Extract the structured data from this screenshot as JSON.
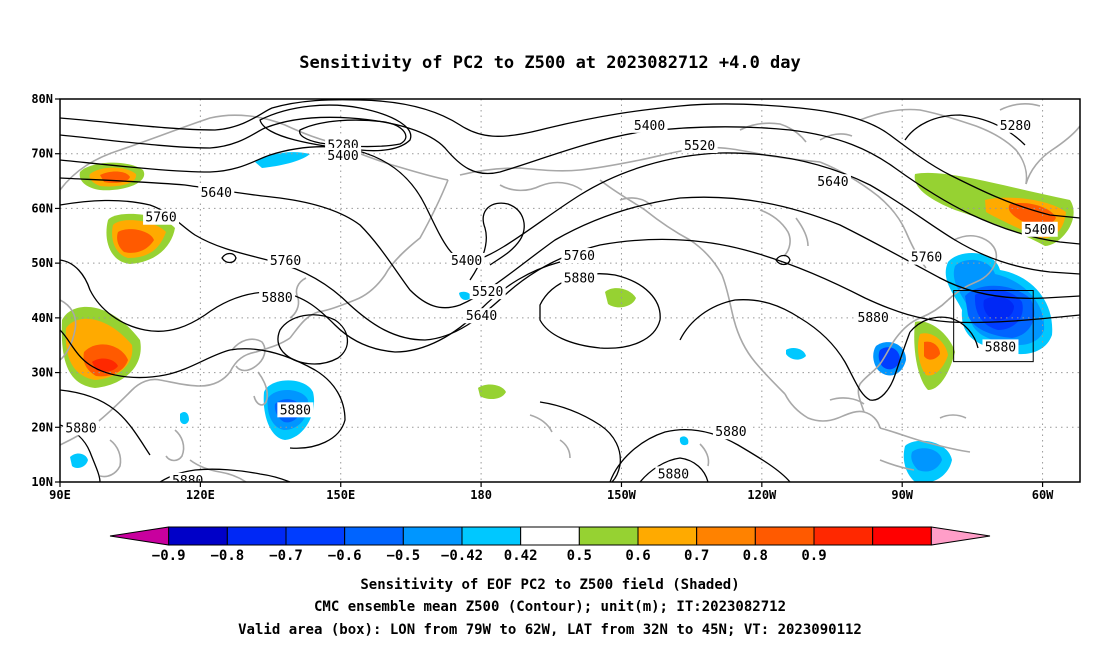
{
  "title": "Sensitivity of PC2 to Z500 at 2023082712 +4.0 day",
  "map": {
    "lon_min": 90,
    "lon_max": 308,
    "lat_min": 10,
    "lat_max": 80,
    "lat_ticks": [
      {
        "value": 80,
        "label": "80N"
      },
      {
        "value": 70,
        "label": "70N"
      },
      {
        "value": 60,
        "label": "60N"
      },
      {
        "value": 50,
        "label": "50N"
      },
      {
        "value": 40,
        "label": "40N"
      },
      {
        "value": 30,
        "label": "30N"
      },
      {
        "value": 20,
        "label": "20N"
      },
      {
        "value": 10,
        "label": "10N"
      }
    ],
    "lon_ticks": [
      {
        "value": 90,
        "label": "90E"
      },
      {
        "value": 120,
        "label": "120E"
      },
      {
        "value": 150,
        "label": "150E"
      },
      {
        "value": 180,
        "label": "180"
      },
      {
        "value": 210,
        "label": "150W"
      },
      {
        "value": 240,
        "label": "120W"
      },
      {
        "value": 270,
        "label": "90W"
      },
      {
        "value": 300,
        "label": "60W"
      }
    ],
    "grid": "dotted",
    "valid_box": {
      "lon_min": 281,
      "lon_max": 298,
      "lat_min": 32,
      "lat_max": 45
    }
  },
  "contour_labels": [
    {
      "text": "5280",
      "lon": 150.5,
      "lat": 71.5
    },
    {
      "text": "5400",
      "lon": 150.5,
      "lat": 69.6
    },
    {
      "text": "5640",
      "lon": 123.4,
      "lat": 62.8
    },
    {
      "text": "5760",
      "lon": 111.6,
      "lat": 58.3
    },
    {
      "text": "5760",
      "lon": 138.2,
      "lat": 50.4
    },
    {
      "text": "5880",
      "lon": 136.4,
      "lat": 43.6
    },
    {
      "text": "5400",
      "lon": 176.9,
      "lat": 50.4
    },
    {
      "text": "5520",
      "lon": 181.4,
      "lat": 44.7
    },
    {
      "text": "5640",
      "lon": 180.1,
      "lat": 40.3
    },
    {
      "text": "5760",
      "lon": 201.0,
      "lat": 51.3
    },
    {
      "text": "5880",
      "lon": 201.0,
      "lat": 47.2
    },
    {
      "text": "5400",
      "lon": 216.0,
      "lat": 75.1
    },
    {
      "text": "5520",
      "lon": 226.7,
      "lat": 71.4
    },
    {
      "text": "5640",
      "lon": 255.2,
      "lat": 64.8
    },
    {
      "text": "5760",
      "lon": 275.2,
      "lat": 51.0
    },
    {
      "text": "5280",
      "lon": 294.2,
      "lat": 75.1
    },
    {
      "text": "5400",
      "lon": 299.4,
      "lat": 56.1
    },
    {
      "text": "5880",
      "lon": 263.8,
      "lat": 40.0
    },
    {
      "text": "5880",
      "lon": 291.0,
      "lat": 34.6
    },
    {
      "text": "5880",
      "lon": 140.3,
      "lat": 23.1
    },
    {
      "text": "5880",
      "lon": 94.5,
      "lat": 19.8
    },
    {
      "text": "5880",
      "lon": 233.4,
      "lat": 19.1
    },
    {
      "text": "5880",
      "lon": 221.1,
      "lat": 11.4
    },
    {
      "text": "5880",
      "lon": 117.3,
      "lat": 10.2
    }
  ],
  "colorbar": {
    "colors": [
      "#c8009e",
      "#0000c8",
      "#0028f5",
      "#003dff",
      "#0064ff",
      "#0096ff",
      "#00c8ff",
      "#ffffff",
      "#96d232",
      "#ffaa00",
      "#ff8200",
      "#ff5a00",
      "#ff2800",
      "#ff0000",
      "#ff9ec8"
    ],
    "labels": [
      "−0.9",
      "−0.8",
      "−0.7",
      "−0.6",
      "−0.5",
      "−0.42",
      "0.42",
      "0.5",
      "0.6",
      "0.7",
      "0.8",
      "0.9"
    ]
  },
  "caption": {
    "line1": "Sensitivity of EOF PC2 to Z500 field (Shaded)",
    "line2": "CMC ensemble mean Z500 (Contour); unit(m); IT:2023082712",
    "line3": "Valid area (box): LON from 79W to 62W, LAT from 32N to 45N; VT: 2023090112"
  }
}
